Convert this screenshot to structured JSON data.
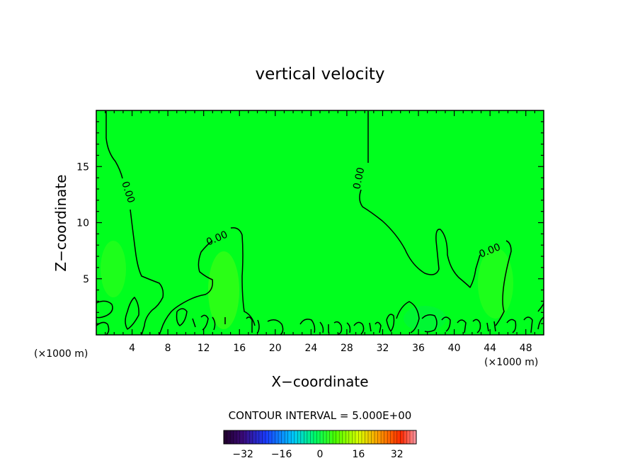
{
  "chart_data": {
    "type": "contour",
    "title": "vertical velocity",
    "xlabel": "X−coordinate",
    "ylabel": "Z−coordinate",
    "x_unit_left": "(×1000 m)",
    "x_unit_right": "(×1000 m)",
    "xlim": [
      0,
      50
    ],
    "ylim": [
      0,
      20
    ],
    "xticks": [
      4,
      8,
      12,
      16,
      20,
      24,
      28,
      32,
      36,
      40,
      44,
      48
    ],
    "yticks": [
      5,
      10,
      15
    ],
    "contour_level_label": "0.00",
    "contour_interval_text": "CONTOUR INTERVAL =  5.000E+00",
    "colorbar": {
      "range": [
        -40,
        40
      ],
      "ticks": [
        -32,
        -16,
        0,
        16,
        32
      ],
      "tick_labels": [
        "−32",
        "−16",
        "0",
        "16",
        "32"
      ]
    },
    "colors": {
      "field": "#00ff1e",
      "contour": "#000000"
    }
  }
}
